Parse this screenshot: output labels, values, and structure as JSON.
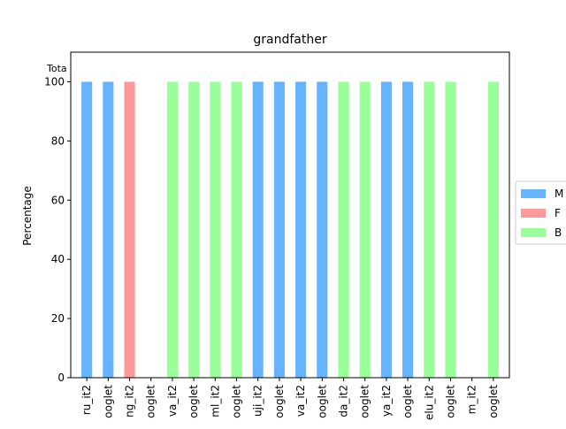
{
  "chart_data": {
    "type": "bar",
    "title": "grandfather",
    "xlabel": "",
    "ylabel": "Percentage",
    "ylim": [
      0,
      110
    ],
    "yticks": [
      0,
      20,
      40,
      60,
      80,
      100
    ],
    "grid": false,
    "legend_position": "right",
    "corner_label": "Tota",
    "categories": [
      "ru_it2",
      "ooglet",
      "ng_it2",
      "ooglet",
      "va_it2",
      "ooglet",
      "ml_it2",
      "ooglet",
      "uji_it2",
      "ooglet",
      "va_it2",
      "ooglet",
      "da_it2",
      "ooglet",
      "ya_it2",
      "ooglet",
      "elu_it2",
      "ooglet",
      "m_it2",
      "ooglet"
    ],
    "series": [
      {
        "name": "M",
        "color": "#66b3ff",
        "values": [
          100,
          100,
          0,
          0,
          0,
          0,
          0,
          0,
          100,
          100,
          100,
          100,
          0,
          0,
          100,
          100,
          0,
          0,
          0,
          0
        ]
      },
      {
        "name": "F",
        "color": "#ff9999",
        "values": [
          0,
          0,
          100,
          0,
          0,
          0,
          0,
          0,
          0,
          0,
          0,
          0,
          0,
          0,
          0,
          0,
          0,
          0,
          0,
          0
        ]
      },
      {
        "name": "B",
        "color": "#99ff99",
        "values": [
          0,
          0,
          0,
          0,
          100,
          100,
          100,
          100,
          0,
          0,
          0,
          0,
          100,
          100,
          0,
          0,
          100,
          100,
          0,
          100
        ]
      }
    ]
  }
}
